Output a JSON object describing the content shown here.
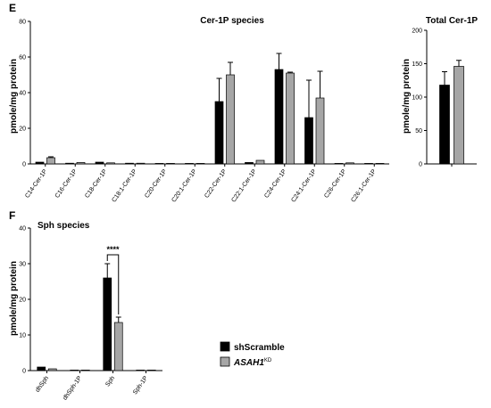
{
  "panels": {
    "e_label": "E",
    "f_label": "F"
  },
  "colors": {
    "shScramble": "#000000",
    "ASAH1_KD": "#a6a6a6",
    "axis": "#000000"
  },
  "legend": {
    "items": [
      {
        "label": "shScramble",
        "color": "#000000"
      },
      {
        "label_main": "ASAH1",
        "label_sup": "KD",
        "italic": true,
        "color": "#a6a6a6"
      }
    ],
    "placement": "bottom-right"
  },
  "chart_data": [
    {
      "id": "cer1p_species",
      "type": "bar",
      "title": "Cer-1P species",
      "ylabel": "pmole/mg protein",
      "ylim": [
        0,
        80
      ],
      "yticks": [
        0,
        20,
        40,
        60,
        80
      ],
      "grid": false,
      "categories": [
        "C14-Cer-1P",
        "C16-Cer-1P",
        "C18-Cer-1P",
        "C18:1-Cer-1P",
        "C20-Cer-1P",
        "C20:1-Cer-1P",
        "C22-Cer-1P",
        "C22:1-Cer-1P",
        "C24-Cer-1P",
        "C24:1-Cer-1P",
        "C26-Cer-1P",
        "C26:1-Cer-1P"
      ],
      "series": [
        {
          "name": "shScramble",
          "values": [
            1.0,
            0.4,
            1.0,
            0.4,
            0.2,
            0.1,
            35,
            0.8,
            53,
            26,
            0.3,
            0.1
          ],
          "errors": [
            0.4,
            0.2,
            0.4,
            0.2,
            0.1,
            0.05,
            13,
            0.4,
            9,
            21,
            0.2,
            0.05
          ]
        },
        {
          "name": "ASAH1KD",
          "values": [
            3.5,
            0.8,
            0.6,
            0.4,
            0.2,
            0.1,
            50,
            2.0,
            51,
            37,
            0.6,
            0.1
          ],
          "errors": [
            0.5,
            0.4,
            0.3,
            0.2,
            0.1,
            0.05,
            7,
            1.3,
            0.5,
            15,
            0.3,
            0.05
          ]
        }
      ]
    },
    {
      "id": "total_cer1p",
      "type": "bar",
      "title": "Total Cer-1P",
      "ylabel": "pmole/mg protein",
      "ylim": [
        0,
        200
      ],
      "yticks": [
        0,
        50,
        100,
        150,
        200
      ],
      "grid": false,
      "categories": [
        ""
      ],
      "series": [
        {
          "name": "shScramble",
          "values": [
            118
          ],
          "errors": [
            20
          ]
        },
        {
          "name": "ASAH1KD",
          "values": [
            146
          ],
          "errors": [
            9
          ]
        }
      ]
    },
    {
      "id": "sph_species",
      "type": "bar",
      "title": "Sph species",
      "ylabel": "pmole/mg protein",
      "ylim": [
        0,
        40
      ],
      "yticks": [
        0,
        10,
        20,
        30,
        40
      ],
      "grid": false,
      "categories": [
        "dhSph",
        "dhSph-1P",
        "Sph",
        "Sph-1P"
      ],
      "series": [
        {
          "name": "shScramble",
          "values": [
            1.0,
            0.05,
            26,
            0.1
          ],
          "errors": [
            0.3,
            0.02,
            4,
            0.05
          ]
        },
        {
          "name": "ASAH1KD",
          "values": [
            0.5,
            0.05,
            13.5,
            0.1
          ],
          "errors": [
            0.2,
            0.02,
            1.5,
            0.05
          ]
        }
      ],
      "annotations": [
        {
          "text": "****",
          "between": "Sph"
        }
      ]
    }
  ]
}
